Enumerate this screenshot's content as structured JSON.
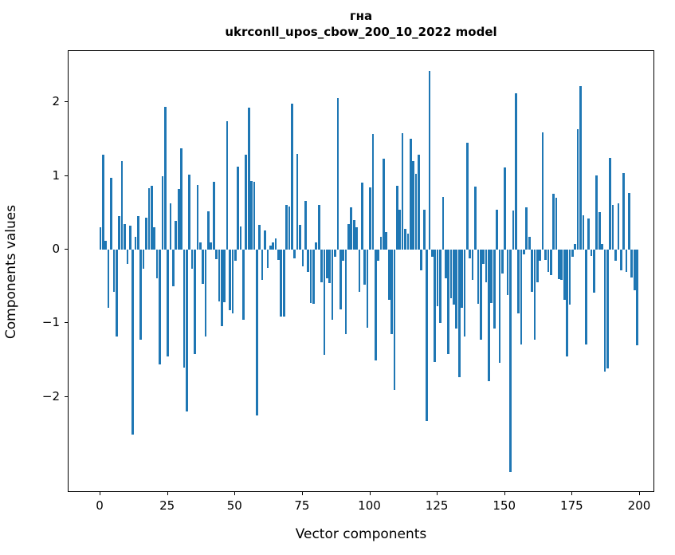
{
  "figure": {
    "title_line1": "гна",
    "title_line2": "ukrconll_upos_cbow_200_10_2022 model",
    "xlabel": "Vector components",
    "ylabel": "Components values",
    "bar_color": "#1f77b4"
  },
  "chart_data": {
    "type": "bar",
    "title": "гна — ukrconll_upos_cbow_200_10_2022 model",
    "xlabel": "Vector components",
    "ylabel": "Components values",
    "x_ticks": [
      0,
      25,
      50,
      75,
      100,
      125,
      150,
      175,
      200
    ],
    "y_ticks": [
      -2,
      -1,
      0,
      1,
      2
    ],
    "xlim": [
      -11.8,
      211.8
    ],
    "ylim": [
      -3.3,
      2.69
    ],
    "grid": false,
    "legend": "none",
    "n_components": 200,
    "values": [
      0.3,
      1.29,
      0.12,
      -0.79,
      0.97,
      -0.57,
      -1.18,
      0.45,
      1.2,
      0.35,
      -0.19,
      0.32,
      -2.51,
      0.17,
      0.45,
      -1.22,
      -0.26,
      0.43,
      0.83,
      0.86,
      0.3,
      -0.39,
      -1.56,
      1.0,
      1.94,
      -1.45,
      0.63,
      -0.5,
      0.39,
      0.82,
      1.37,
      -1.6,
      -2.2,
      1.02,
      -0.26,
      -1.42,
      0.88,
      0.1,
      -0.46,
      -1.18,
      0.52,
      0.1,
      0.92,
      -0.13,
      -0.7,
      -1.04,
      -0.71,
      1.74,
      -0.82,
      -0.86,
      -0.15,
      1.12,
      0.31,
      -0.95,
      1.29,
      1.92,
      0.93,
      0.92,
      -2.25,
      0.33,
      -0.41,
      0.26,
      -0.25,
      0.05,
      0.1,
      0.15,
      -0.14,
      -0.91,
      -0.91,
      0.61,
      0.58,
      1.98,
      -0.12,
      1.3,
      0.33,
      -0.23,
      0.66,
      -0.3,
      -0.73,
      -0.74,
      0.1,
      0.61,
      -0.44,
      -1.43,
      -0.39,
      -0.45,
      -0.95,
      -0.1,
      2.05,
      -0.81,
      -0.15,
      -1.15,
      0.35,
      0.57,
      0.4,
      0.3,
      -0.57,
      0.91,
      -0.48,
      -1.06,
      0.84,
      1.57,
      -1.5,
      -0.15,
      0.17,
      1.23,
      0.24,
      -0.68,
      -1.15,
      -1.9,
      0.87,
      0.54,
      1.58,
      0.28,
      0.22,
      1.5,
      1.2,
      1.03,
      1.29,
      -0.28,
      0.54,
      -2.32,
      2.42,
      -0.1,
      -1.53,
      -0.77,
      -0.99,
      0.71,
      -0.39,
      -1.42,
      -0.66,
      -0.75,
      -1.07,
      -1.73,
      -0.79,
      -1.18,
      1.45,
      -0.12,
      -0.41,
      0.85,
      -0.74,
      -1.22,
      -0.19,
      -0.44,
      -1.78,
      -0.73,
      -1.07,
      0.54,
      -1.54,
      -0.32,
      1.11,
      -0.62,
      -3.02,
      0.53,
      2.12,
      -0.86,
      -1.29,
      -0.06,
      0.57,
      0.17,
      -0.57,
      -1.22,
      -0.44,
      -0.15,
      1.59,
      -0.14,
      -0.3,
      -0.35,
      0.76,
      0.7,
      -0.4,
      -0.41,
      -0.68,
      -1.45,
      -0.75,
      -0.1,
      0.08,
      1.63,
      2.22,
      0.47,
      -1.29,
      0.42,
      -0.09,
      -0.58,
      1.01,
      0.51,
      0.08,
      -1.65,
      -1.61,
      1.24,
      0.61,
      -0.15,
      0.63,
      -0.28,
      1.04,
      -0.3,
      0.77,
      -0.38,
      -0.55,
      -1.3
    ]
  }
}
